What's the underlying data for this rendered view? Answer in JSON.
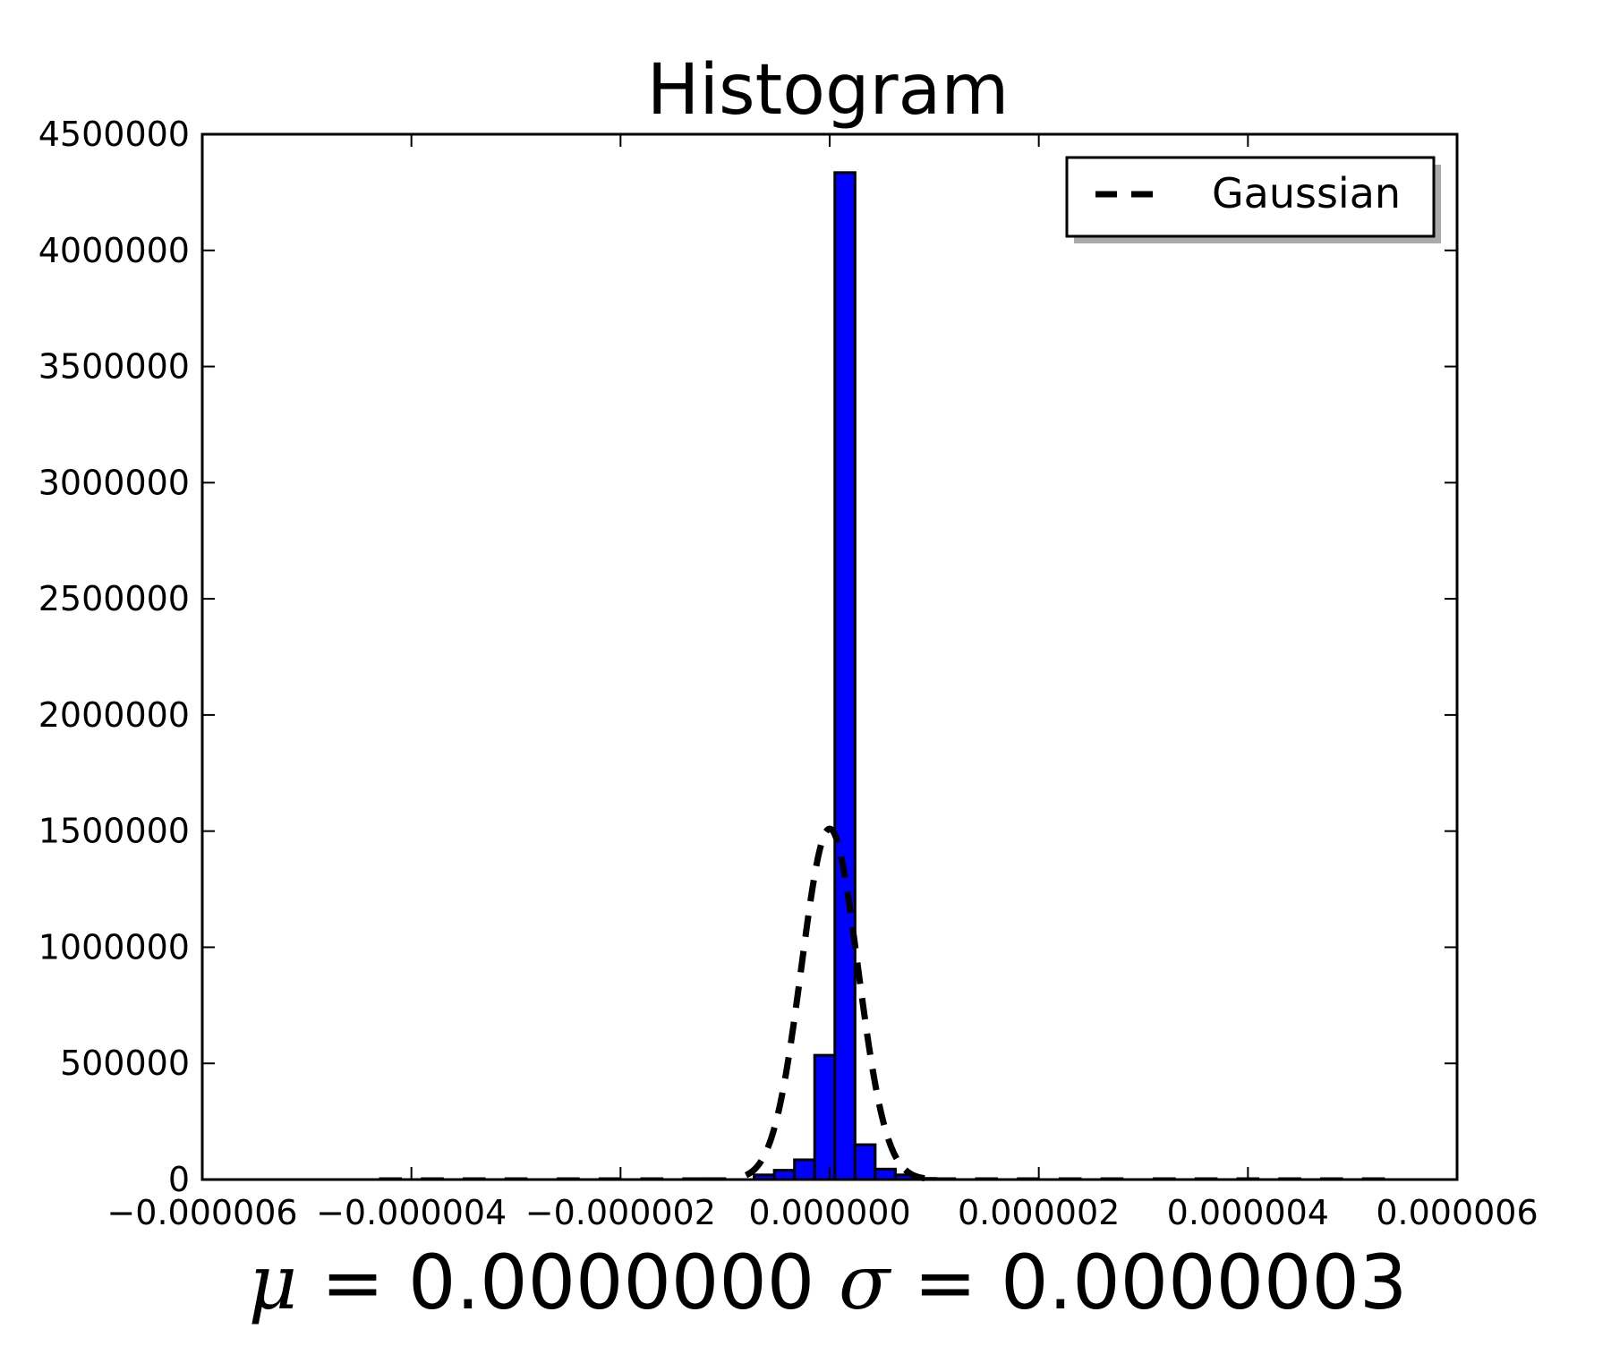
{
  "chart_data": {
    "type": "bar",
    "title": "Histogram",
    "xlabel": "μ = 0.0000000  σ = 0.0000003",
    "xlabel_mu": "μ",
    "xlabel_sigma": "σ",
    "xlabel_mu_value": " = 0.0000000",
    "xlabel_sigma_value": " = 0.0000003",
    "ylabel": "",
    "xlim": [
      -6e-06,
      6e-06
    ],
    "ylim": [
      0,
      4500000
    ],
    "xticks": [
      -6e-06,
      -4e-06,
      -2e-06,
      0.0,
      2e-06,
      4e-06,
      6e-06
    ],
    "xtick_labels": [
      "−0.000006",
      "−0.000004",
      "−0.000002",
      "0.000000",
      "0.000002",
      "0.000004",
      "0.000006"
    ],
    "yticks": [
      0,
      500000,
      1000000,
      1500000,
      2000000,
      2500000,
      3000000,
      3500000,
      4000000,
      4500000
    ],
    "ytick_labels": [
      "0",
      "500000",
      "1000000",
      "1500000",
      "2000000",
      "2500000",
      "3000000",
      "3500000",
      "4000000",
      "4500000"
    ],
    "bar_color": "#0000ff",
    "bar_edge_color": "#000000",
    "bin_width": 1.93e-07,
    "bins": [
      {
        "x": -4.2e-06,
        "value": 2500
      },
      {
        "x": -3.8e-06,
        "value": 2500
      },
      {
        "x": -3.4e-06,
        "value": 2500
      },
      {
        "x": -3e-06,
        "value": 2500
      },
      {
        "x": -2.5e-06,
        "value": 2500
      },
      {
        "x": -2.1e-06,
        "value": 2500
      },
      {
        "x": -1.7e-06,
        "value": 2500
      },
      {
        "x": -1.3e-06,
        "value": 3000
      },
      {
        "x": -1.1e-06,
        "value": 4000
      },
      {
        "x": -6.26e-07,
        "value": 20000
      },
      {
        "x": -4.33e-07,
        "value": 40000
      },
      {
        "x": -2.4e-07,
        "value": 85000
      },
      {
        "x": -4.7e-08,
        "value": 535000
      },
      {
        "x": 1.46e-07,
        "value": 4335000
      },
      {
        "x": 3.39e-07,
        "value": 150000
      },
      {
        "x": 5.32e-07,
        "value": 45000
      },
      {
        "x": 7.25e-07,
        "value": 20000
      },
      {
        "x": 9.18e-07,
        "value": 5000
      },
      {
        "x": 1.1e-06,
        "value": 3000
      },
      {
        "x": 1.5e-06,
        "value": 2500
      },
      {
        "x": 1.9e-06,
        "value": 2500
      },
      {
        "x": 2.3e-06,
        "value": 2500
      },
      {
        "x": 2.7e-06,
        "value": 2500
      },
      {
        "x": 3.2e-06,
        "value": 2500
      },
      {
        "x": 3.6e-06,
        "value": 2500
      },
      {
        "x": 4e-06,
        "value": 2500
      },
      {
        "x": 4.4e-06,
        "value": 2500
      },
      {
        "x": 4.8e-06,
        "value": 2500
      },
      {
        "x": 5.2e-06,
        "value": 2500
      }
    ],
    "series": [
      {
        "name": "Gaussian",
        "style": "dashed",
        "color": "#000000",
        "mu": 0.0,
        "sigma": 2.7e-07,
        "peak": 1510000,
        "x_range": [
          -8e-07,
          1e-06
        ]
      }
    ],
    "legend": {
      "placement": "top-right",
      "entries": [
        "Gaussian"
      ]
    },
    "grid": false
  }
}
